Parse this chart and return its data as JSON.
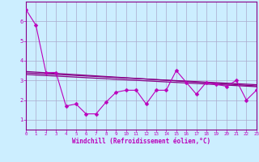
{
  "background_color": "#cceeff",
  "grid_color": "#aaaacc",
  "line_color": "#bb00bb",
  "line_color2": "#880088",
  "marker": "D",
  "marker_size": 2.5,
  "xlabel": "Windchill (Refroidissement éolien,°C)",
  "xlim": [
    0,
    23
  ],
  "ylim": [
    0.5,
    7.0
  ],
  "yticks": [
    1,
    2,
    3,
    4,
    5,
    6
  ],
  "xticks": [
    0,
    1,
    2,
    3,
    4,
    5,
    6,
    7,
    8,
    9,
    10,
    11,
    12,
    13,
    14,
    15,
    16,
    17,
    18,
    19,
    20,
    21,
    22,
    23
  ],
  "series1_x": [
    0,
    1,
    2,
    3,
    4,
    5,
    6,
    7,
    8,
    9,
    10,
    11,
    12,
    13,
    14,
    15,
    16,
    17,
    18,
    19,
    20,
    21,
    22,
    23
  ],
  "series1_y": [
    6.6,
    5.8,
    3.4,
    3.4,
    1.7,
    1.8,
    1.3,
    1.3,
    1.9,
    2.4,
    2.5,
    2.5,
    1.8,
    2.5,
    2.5,
    3.5,
    2.9,
    2.3,
    2.9,
    2.8,
    2.7,
    3.0,
    2.0,
    2.5
  ],
  "trend1_x": [
    0,
    23
  ],
  "trend1_y": [
    3.45,
    2.72
  ],
  "trend2_x": [
    0,
    23
  ],
  "trend2_y": [
    3.38,
    2.78
  ],
  "trend3_x": [
    0,
    23
  ],
  "trend3_y": [
    3.3,
    2.68
  ]
}
